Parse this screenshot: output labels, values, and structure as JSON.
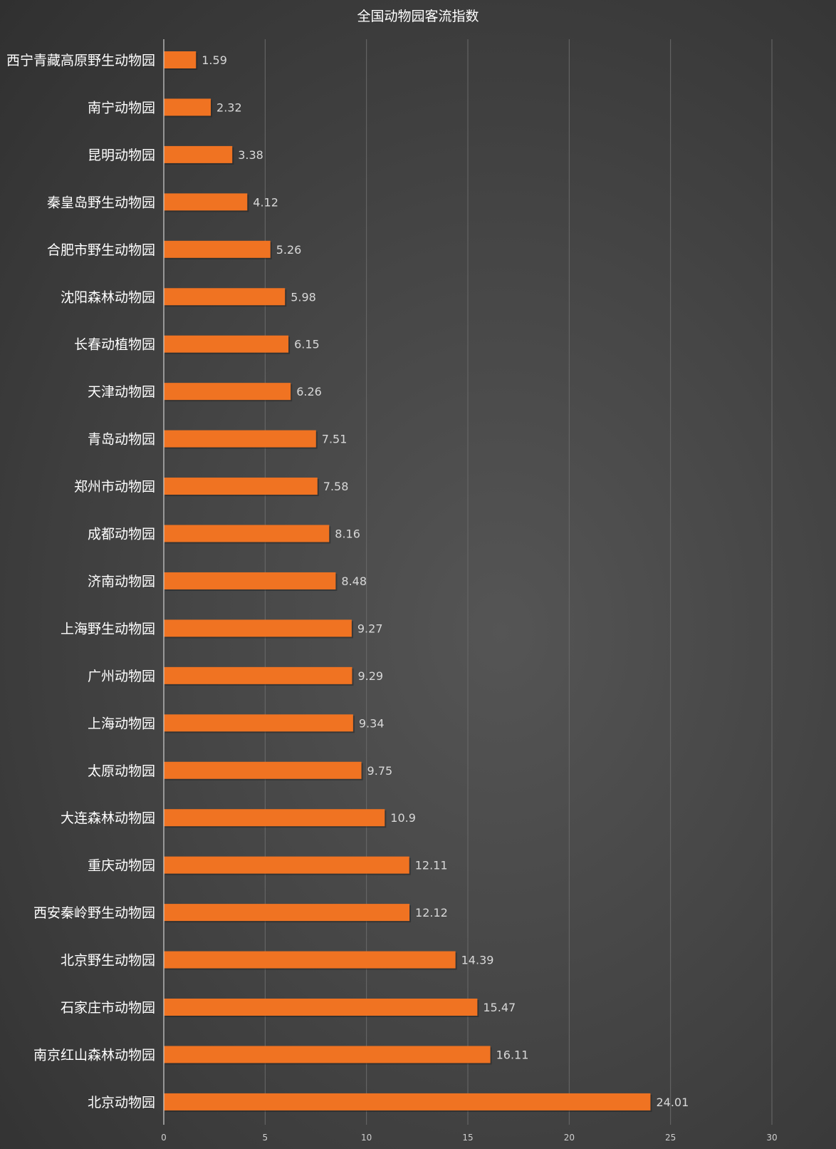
{
  "chart_data": {
    "type": "bar",
    "orientation": "horizontal",
    "title": "全国动物园客流指数",
    "categories": [
      "西宁青藏高原野生动物园",
      "南宁动物园",
      "昆明动物园",
      "秦皇岛野生动物园",
      "合肥市野生动物园",
      "沈阳森林动物园",
      "长春动植物园",
      "天津动物园",
      "青岛动物园",
      "郑州市动物园",
      "成都动物园",
      "济南动物园",
      "上海野生动物园",
      "广州动物园",
      "上海动物园",
      "太原动物园",
      "大连森林动物园",
      "重庆动物园",
      "西安秦岭野生动物园",
      "北京野生动物园",
      "石家庄市动物园",
      "南京红山森林动物园",
      "北京动物园"
    ],
    "values": [
      1.59,
      2.32,
      3.38,
      4.12,
      5.26,
      5.98,
      6.15,
      6.26,
      7.51,
      7.58,
      8.16,
      8.48,
      9.27,
      9.29,
      9.34,
      9.75,
      10.9,
      12.11,
      12.12,
      14.39,
      15.47,
      16.11,
      24.01
    ],
    "value_labels": [
      "1.59",
      "2.32",
      "3.38",
      "4.12",
      "5.26",
      "5.98",
      "6.15",
      "6.26",
      "7.51",
      "7.58",
      "8.16",
      "8.48",
      "9.27",
      "9.29",
      "9.34",
      "9.75",
      "10.9",
      "12.11",
      "12.12",
      "14.39",
      "15.47",
      "16.11",
      "24.01"
    ],
    "xlim": [
      0,
      30
    ],
    "xticks": [
      "0",
      "5",
      "10",
      "15",
      "20",
      "25",
      "30"
    ],
    "xlabel": "",
    "ylabel": "",
    "grid": true,
    "legend": "none",
    "bar_color": "#f07322",
    "background_color": "#454545",
    "text_color": "#ffffff"
  }
}
